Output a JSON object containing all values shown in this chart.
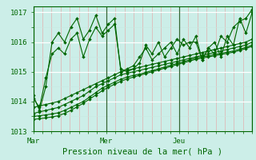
{
  "xlabel": "Pression niveau de la mer( hPa )",
  "bg_color": "#cceee8",
  "line_color": "#006600",
  "marker_color": "#006600",
  "axis_label_color": "#006600",
  "tick_label_color": "#006600",
  "xlim": [
    0,
    72
  ],
  "ylim": [
    1013.0,
    1017.2
  ],
  "yticks": [
    1013,
    1014,
    1015,
    1016,
    1017
  ],
  "day_ticks": [
    0,
    24,
    48
  ],
  "day_labels": [
    "Mar",
    "Mer",
    "Jeu"
  ],
  "series_volatile1": [
    1014.1,
    1013.8,
    1014.8,
    1015.6,
    1015.8,
    1015.6,
    1016.1,
    1016.3,
    1015.5,
    1016.1,
    1016.5,
    1016.2,
    1016.4,
    1016.6,
    1015.1,
    1015.0,
    1015.1,
    1015.3,
    1015.9,
    1015.6,
    1016.0,
    1015.5,
    1015.8,
    1016.1,
    1015.9,
    1016.0,
    1016.0,
    1015.4,
    1015.8,
    1015.6,
    1016.2,
    1016.0,
    1016.5,
    1016.7,
    1016.8,
    1017.1
  ],
  "series_volatile2": [
    1014.2,
    1013.7,
    1014.5,
    1016.0,
    1016.3,
    1016.0,
    1016.5,
    1016.8,
    1016.1,
    1016.4,
    1016.9,
    1016.3,
    1016.6,
    1016.8,
    1015.0,
    1015.1,
    1015.2,
    1015.5,
    1015.8,
    1015.4,
    1015.6,
    1015.8,
    1016.0,
    1015.6,
    1016.1,
    1015.8,
    1016.2,
    1015.4,
    1015.8,
    1016.0,
    1015.5,
    1016.2,
    1015.9,
    1016.8,
    1016.3,
    1017.0
  ],
  "series_linear": [
    [
      1013.8,
      1013.85,
      1013.9,
      1013.95,
      1014.0,
      1014.1,
      1014.2,
      1014.3,
      1014.4,
      1014.5,
      1014.6,
      1014.7,
      1014.8,
      1014.9,
      1015.0,
      1015.05,
      1015.1,
      1015.15,
      1015.2,
      1015.25,
      1015.3,
      1015.35,
      1015.4,
      1015.45,
      1015.5,
      1015.55,
      1015.6,
      1015.65,
      1015.7,
      1015.75,
      1015.8,
      1015.85,
      1015.9,
      1015.95,
      1016.0,
      1016.1
    ],
    [
      1013.6,
      1013.65,
      1013.7,
      1013.75,
      1013.8,
      1013.9,
      1014.0,
      1014.1,
      1014.2,
      1014.35,
      1014.5,
      1014.6,
      1014.7,
      1014.8,
      1014.9,
      1014.95,
      1015.0,
      1015.05,
      1015.1,
      1015.15,
      1015.2,
      1015.25,
      1015.3,
      1015.35,
      1015.4,
      1015.45,
      1015.5,
      1015.55,
      1015.6,
      1015.65,
      1015.7,
      1015.75,
      1015.8,
      1015.85,
      1015.9,
      1016.0
    ],
    [
      1013.5,
      1013.52,
      1013.55,
      1013.58,
      1013.62,
      1013.7,
      1013.8,
      1013.9,
      1014.0,
      1014.15,
      1014.3,
      1014.45,
      1014.55,
      1014.65,
      1014.75,
      1014.82,
      1014.88,
      1014.92,
      1014.98,
      1015.04,
      1015.1,
      1015.16,
      1015.22,
      1015.28,
      1015.34,
      1015.4,
      1015.46,
      1015.5,
      1015.54,
      1015.58,
      1015.62,
      1015.66,
      1015.7,
      1015.76,
      1015.82,
      1015.9
    ],
    [
      1013.4,
      1013.42,
      1013.45,
      1013.48,
      1013.52,
      1013.6,
      1013.7,
      1013.82,
      1013.94,
      1014.08,
      1014.22,
      1014.36,
      1014.48,
      1014.58,
      1014.68,
      1014.76,
      1014.82,
      1014.88,
      1014.94,
      1015.0,
      1015.06,
      1015.12,
      1015.18,
      1015.24,
      1015.3,
      1015.36,
      1015.42,
      1015.46,
      1015.5,
      1015.54,
      1015.58,
      1015.62,
      1015.66,
      1015.72,
      1015.78,
      1015.86
    ]
  ]
}
